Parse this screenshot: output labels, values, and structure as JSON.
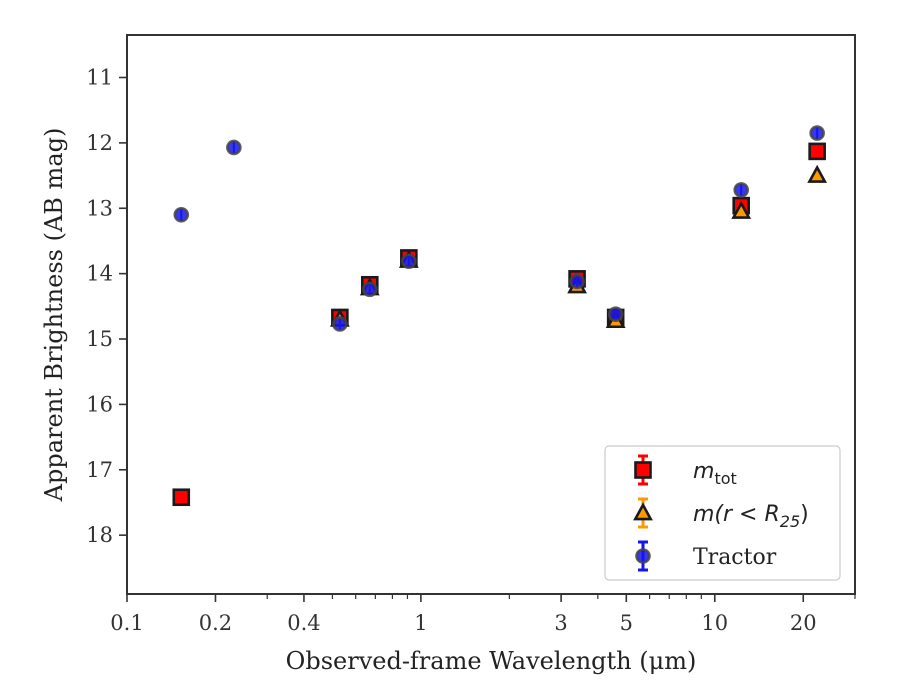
{
  "chart_data": {
    "type": "scatter",
    "title": "",
    "xlabel": "Observed-frame Wavelength (μm)",
    "ylabel": "Apparent Brightness (AB mag)",
    "xscale": "log",
    "xlim": [
      0.1,
      30
    ],
    "ylim": [
      18.9,
      10.35
    ],
    "y_inverted": true,
    "xticks": [
      {
        "value": 0.1,
        "label": "0.1"
      },
      {
        "value": 0.2,
        "label": "0.2"
      },
      {
        "value": 0.4,
        "label": "0.4"
      },
      {
        "value": 1,
        "label": "1"
      },
      {
        "value": 3,
        "label": "3"
      },
      {
        "value": 5,
        "label": "5"
      },
      {
        "value": 10,
        "label": "10"
      },
      {
        "value": 20,
        "label": "20"
      }
    ],
    "yticks": [
      {
        "value": 11,
        "label": "11"
      },
      {
        "value": 12,
        "label": "12"
      },
      {
        "value": 13,
        "label": "13"
      },
      {
        "value": 14,
        "label": "14"
      },
      {
        "value": 15,
        "label": "15"
      },
      {
        "value": 16,
        "label": "16"
      },
      {
        "value": 17,
        "label": "17"
      },
      {
        "value": 18,
        "label": "18"
      }
    ],
    "legend_placement": "lower-right",
    "series": [
      {
        "name": "m_tot",
        "legend_main": "m",
        "legend_sub": "tot",
        "marker": "square",
        "color": "#ff0000",
        "edgecolor": "#1a1a1a",
        "errorcolor": "#ff0000",
        "points": [
          {
            "x": 0.153,
            "y": 17.42
          },
          {
            "x": 0.53,
            "y": 14.67
          },
          {
            "x": 0.67,
            "y": 14.17
          },
          {
            "x": 0.91,
            "y": 13.76
          },
          {
            "x": 3.4,
            "y": 14.08
          },
          {
            "x": 4.6,
            "y": 14.67
          },
          {
            "x": 12.3,
            "y": 12.96
          },
          {
            "x": 22.3,
            "y": 12.13
          }
        ]
      },
      {
        "name": "m(r<R25)",
        "legend_main": "m(r < R",
        "legend_sub": "25",
        "legend_tail": ")",
        "marker": "triangle",
        "color": "#ff9900",
        "edgecolor": "#1a1a1a",
        "errorcolor": "#ff9900",
        "points": [
          {
            "x": 0.53,
            "y": 14.7
          },
          {
            "x": 0.67,
            "y": 14.22
          },
          {
            "x": 0.91,
            "y": 13.8
          },
          {
            "x": 3.4,
            "y": 14.19
          },
          {
            "x": 4.6,
            "y": 14.72
          },
          {
            "x": 12.3,
            "y": 13.05
          },
          {
            "x": 22.3,
            "y": 12.5
          }
        ]
      },
      {
        "name": "Tractor",
        "marker": "circle",
        "color": "#1515ee",
        "edgecolor": "#444444",
        "errorcolor": "#1515ee",
        "points": [
          {
            "x": 0.153,
            "y": 13.1
          },
          {
            "x": 0.231,
            "y": 12.07
          },
          {
            "x": 0.53,
            "y": 14.77
          },
          {
            "x": 0.67,
            "y": 14.24
          },
          {
            "x": 0.91,
            "y": 13.81
          },
          {
            "x": 3.4,
            "y": 14.12
          },
          {
            "x": 4.6,
            "y": 14.62
          },
          {
            "x": 12.3,
            "y": 12.72
          },
          {
            "x": 22.3,
            "y": 11.85
          }
        ]
      }
    ]
  }
}
